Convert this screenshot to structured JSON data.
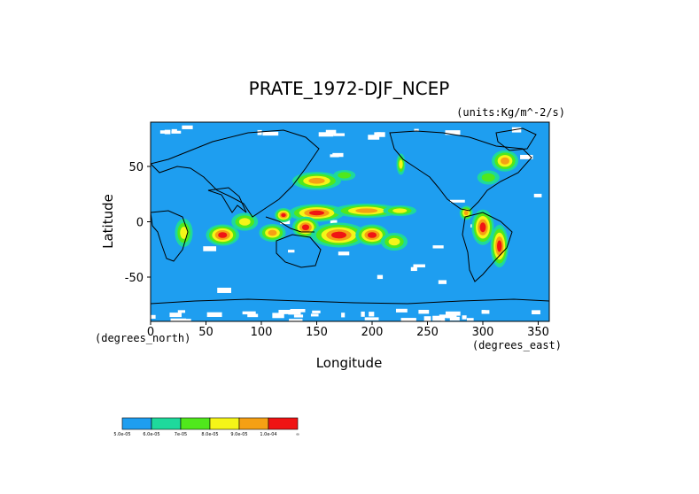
{
  "chart_data": {
    "type": "heatmap",
    "title": "PRATE_1972-DJF_NCEP",
    "units": "(units:Kg/m^-2/s)",
    "xlabel": "Longitude",
    "ylabel": "Latitude",
    "x_unit_note": "(degrees_east)",
    "y_unit_note": "(degrees_north)",
    "xlim": [
      0,
      360
    ],
    "ylim": [
      -90,
      90
    ],
    "x_ticks": [
      0,
      50,
      100,
      150,
      200,
      250,
      300,
      350
    ],
    "y_ticks": [
      50,
      0,
      -50
    ],
    "legend": {
      "placement": "bottom-left",
      "labels": [
        "5.0e-05",
        "6.0e-05",
        "7e-05",
        "8.0e-05",
        "9.0e-05",
        "1.0e-04",
        "∞"
      ],
      "colors": [
        "#1e9ef0",
        "#1ed99c",
        "#50e81c",
        "#f5f518",
        "#f5a014",
        "#f01414"
      ]
    },
    "background_color": "#1e9ef0",
    "missing_color": "#ffffff",
    "blobs": [
      {
        "lon": 150,
        "lat": 37,
        "rx": 22,
        "ry": 5,
        "level": 4
      },
      {
        "lon": 175,
        "lat": 42,
        "rx": 10,
        "ry": 3,
        "level": 2
      },
      {
        "lon": 150,
        "lat": 8,
        "rx": 25,
        "ry": 5,
        "level": 5
      },
      {
        "lon": 195,
        "lat": 10,
        "rx": 30,
        "ry": 4,
        "level": 4
      },
      {
        "lon": 225,
        "lat": 10,
        "rx": 15,
        "ry": 3,
        "level": 3
      },
      {
        "lon": 120,
        "lat": 6,
        "rx": 8,
        "ry": 4,
        "level": 5
      },
      {
        "lon": 140,
        "lat": -5,
        "rx": 12,
        "ry": 6,
        "level": 5
      },
      {
        "lon": 170,
        "lat": -12,
        "rx": 25,
        "ry": 7,
        "level": 5
      },
      {
        "lon": 200,
        "lat": -12,
        "rx": 15,
        "ry": 6,
        "level": 5
      },
      {
        "lon": 220,
        "lat": -18,
        "rx": 12,
        "ry": 5,
        "level": 3
      },
      {
        "lon": 65,
        "lat": -12,
        "rx": 15,
        "ry": 6,
        "level": 5
      },
      {
        "lon": 85,
        "lat": 0,
        "rx": 12,
        "ry": 5,
        "level": 3
      },
      {
        "lon": 110,
        "lat": -10,
        "rx": 12,
        "ry": 5,
        "level": 4
      },
      {
        "lon": 30,
        "lat": -10,
        "rx": 8,
        "ry": 8,
        "level": 3
      },
      {
        "lon": 300,
        "lat": -5,
        "rx": 10,
        "ry": 10,
        "level": 5
      },
      {
        "lon": 315,
        "lat": -22,
        "rx": 8,
        "ry": 12,
        "level": 5
      },
      {
        "lon": 285,
        "lat": 8,
        "rx": 6,
        "ry": 4,
        "level": 4
      },
      {
        "lon": 320,
        "lat": 55,
        "rx": 12,
        "ry": 6,
        "level": 4
      },
      {
        "lon": 305,
        "lat": 40,
        "rx": 10,
        "ry": 4,
        "level": 2
      },
      {
        "lon": 226,
        "lat": 52,
        "rx": 4,
        "ry": 6,
        "level": 3
      }
    ]
  }
}
